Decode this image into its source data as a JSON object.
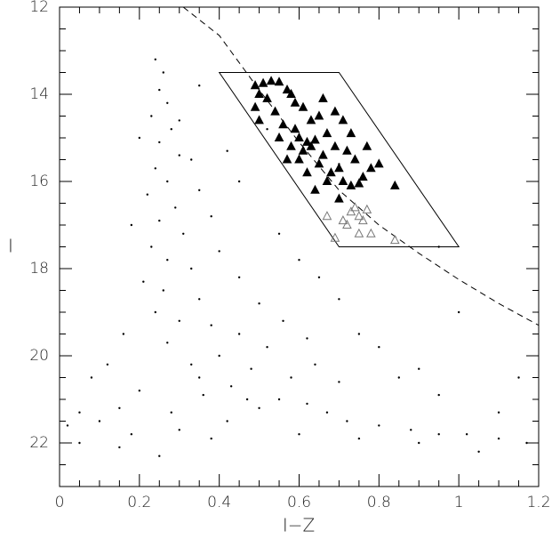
{
  "chart_data": {
    "type": "scatter",
    "xlabel": "I−Z",
    "ylabel": "I",
    "xlim": [
      0,
      1.2
    ],
    "ylim": [
      23,
      12
    ],
    "xticks": [
      0,
      0.2,
      0.4,
      0.6,
      0.8,
      1,
      1.2
    ],
    "yticks": [
      12,
      14,
      16,
      18,
      20,
      22
    ],
    "xminorticks": [
      0.05,
      0.1,
      0.15,
      0.25,
      0.3,
      0.35,
      0.45,
      0.5,
      0.55,
      0.65,
      0.7,
      0.75,
      0.85,
      0.9,
      0.95,
      1.05,
      1.1,
      1.15
    ],
    "yminorticks": [
      12.5,
      13,
      13.5,
      14.5,
      15,
      15.5,
      16.5,
      17,
      17.5,
      18.5,
      19,
      19.5,
      20.5,
      21,
      21.5,
      22.5
    ],
    "series": [
      {
        "marker": "dot",
        "color": "#000000",
        "x": [
          0.24,
          0.26,
          0.25,
          0.27,
          0.23,
          0.28,
          0.25,
          0.3,
          0.24,
          0.27,
          0.22,
          0.29,
          0.25,
          0.31,
          0.23,
          0.27,
          0.33,
          0.21,
          0.26,
          0.35,
          0.24,
          0.3,
          0.38,
          0.45,
          0.52,
          0.4,
          0.33,
          0.48,
          0.58,
          0.43,
          0.36,
          0.55,
          0.62,
          0.5,
          0.28,
          0.2,
          0.15,
          0.1,
          0.05,
          0.02,
          0.18,
          0.3,
          0.42,
          0.67,
          0.72,
          0.8,
          0.88,
          0.95,
          1.02,
          1.1,
          1.17,
          1.05,
          0.9,
          0.75,
          0.6,
          0.64,
          0.7,
          0.56,
          0.62,
          0.5,
          0.45,
          0.4,
          0.38,
          0.35,
          0.33,
          0.3,
          0.2,
          0.18,
          0.16,
          0.12,
          0.08,
          0.6,
          0.7,
          0.8,
          0.85,
          0.95,
          1.1,
          0.45,
          0.55,
          0.65,
          0.75,
          0.9,
          0.35,
          0.42,
          0.15,
          0.05,
          0.25,
          0.35,
          0.27,
          0.47,
          0.38,
          1.0,
          1.15,
          0.7,
          0.95,
          0.52
        ],
        "values": [
          13.2,
          13.5,
          13.9,
          14.2,
          14.5,
          14.8,
          15.1,
          15.4,
          15.7,
          16.0,
          16.3,
          16.6,
          16.9,
          17.2,
          17.5,
          17.8,
          18.0,
          18.3,
          18.5,
          18.7,
          19.0,
          19.2,
          19.3,
          19.5,
          19.8,
          20.0,
          20.2,
          20.3,
          20.5,
          20.7,
          20.9,
          21.0,
          21.1,
          21.2,
          21.3,
          20.8,
          21.2,
          21.5,
          21.3,
          21.6,
          21.8,
          21.7,
          21.5,
          21.3,
          21.5,
          21.6,
          21.7,
          21.8,
          21.8,
          21.9,
          22.0,
          22.2,
          22.0,
          21.9,
          21.8,
          20.2,
          20.6,
          19.2,
          19.6,
          18.8,
          18.2,
          17.6,
          16.8,
          16.2,
          15.5,
          14.6,
          15.0,
          17.0,
          19.5,
          20.2,
          20.5,
          17.8,
          18.7,
          19.8,
          20.5,
          20.9,
          21.3,
          16.0,
          17.2,
          18.2,
          19.5,
          20.3,
          13.8,
          15.3,
          22.1,
          22.0,
          22.3,
          20.5,
          19.7,
          21.0,
          21.9,
          19.0,
          20.5,
          15.6,
          17.5,
          14.8
        ]
      },
      {
        "marker": "filled-triangle",
        "color": "#000000",
        "x": [
          0.49,
          0.51,
          0.53,
          0.55,
          0.5,
          0.52,
          0.57,
          0.59,
          0.49,
          0.54,
          0.61,
          0.63,
          0.56,
          0.59,
          0.65,
          0.67,
          0.6,
          0.62,
          0.63,
          0.64,
          0.61,
          0.58,
          0.66,
          0.69,
          0.72,
          0.6,
          0.65,
          0.7,
          0.74,
          0.68,
          0.76,
          0.71,
          0.73,
          0.78,
          0.8,
          0.75,
          0.67,
          0.62,
          0.57,
          0.66,
          0.69,
          0.71,
          0.73,
          0.55,
          0.84,
          0.7,
          0.64,
          0.5,
          0.58,
          0.77
        ],
        "values": [
          13.8,
          13.75,
          13.7,
          13.72,
          14.0,
          14.1,
          13.9,
          14.2,
          14.3,
          14.4,
          14.3,
          14.6,
          14.7,
          14.8,
          14.5,
          14.9,
          15.0,
          15.1,
          15.2,
          15.05,
          15.3,
          15.2,
          15.4,
          15.2,
          15.3,
          15.5,
          15.6,
          15.7,
          15.5,
          15.8,
          15.9,
          16.0,
          16.1,
          15.7,
          15.6,
          16.05,
          16.0,
          15.8,
          15.5,
          14.1,
          14.4,
          14.6,
          14.9,
          15.0,
          16.1,
          16.4,
          16.2,
          14.6,
          14.0,
          15.2
        ]
      },
      {
        "marker": "open-triangle",
        "color": "#777777",
        "x": [
          0.73,
          0.74,
          0.75,
          0.76,
          0.72,
          0.75,
          0.78,
          0.69,
          0.67,
          0.71,
          0.77,
          0.84
        ],
        "values": [
          16.7,
          16.6,
          16.8,
          16.9,
          17.0,
          17.2,
          17.2,
          17.3,
          16.8,
          16.9,
          16.65,
          17.35
        ]
      }
    ],
    "lines": [
      {
        "style": "dashed",
        "x": [
          0.31,
          0.4,
          0.5,
          0.6,
          0.7,
          0.8,
          0.9,
          1.0,
          1.1,
          1.2
        ],
        "values": [
          12,
          12.65,
          13.9,
          15.1,
          16.2,
          17.0,
          17.65,
          18.25,
          18.8,
          19.3
        ]
      },
      {
        "style": "solid",
        "closed": true,
        "x": [
          0.4,
          0.7,
          1.0,
          0.7
        ],
        "values": [
          13.5,
          13.5,
          17.5,
          17.5
        ]
      }
    ]
  }
}
